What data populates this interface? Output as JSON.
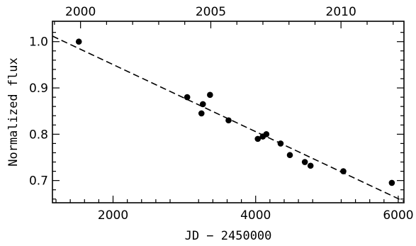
{
  "chart_data": {
    "type": "scatter",
    "xlabel": "JD − 2450000",
    "ylabel": "Normalized flux",
    "xlim": [
      1150,
      6080
    ],
    "ylim": [
      0.652,
      1.044
    ],
    "x_ticks": [
      2000,
      4000,
      6000
    ],
    "x_tick_labels": [
      "2000",
      "4000",
      "6000"
    ],
    "y_ticks": [
      0.7,
      0.8,
      0.9,
      1.0
    ],
    "y_tick_labels": [
      "0.7",
      "0.8",
      "0.9",
      "1.0"
    ],
    "top_axis": {
      "ticks": [
        2000,
        2005,
        2010
      ],
      "tick_labels": [
        "2000",
        "2005",
        "2010"
      ],
      "tick_jd": [
        1544,
        3371,
        5197
      ]
    },
    "points": [
      {
        "x": 1520,
        "y": 1.0
      },
      {
        "x": 3040,
        "y": 0.88
      },
      {
        "x": 3240,
        "y": 0.845
      },
      {
        "x": 3260,
        "y": 0.865
      },
      {
        "x": 3360,
        "y": 0.885
      },
      {
        "x": 3620,
        "y": 0.83
      },
      {
        "x": 4030,
        "y": 0.79
      },
      {
        "x": 4100,
        "y": 0.795
      },
      {
        "x": 4150,
        "y": 0.8
      },
      {
        "x": 4350,
        "y": 0.78
      },
      {
        "x": 4480,
        "y": 0.755
      },
      {
        "x": 4690,
        "y": 0.74
      },
      {
        "x": 4770,
        "y": 0.732
      },
      {
        "x": 5230,
        "y": 0.72
      },
      {
        "x": 5910,
        "y": 0.695
      }
    ],
    "trend_line": {
      "style": "dashed",
      "start": {
        "x": 1150,
        "y": 1.012
      },
      "end": {
        "x": 6080,
        "y": 0.655
      }
    }
  }
}
